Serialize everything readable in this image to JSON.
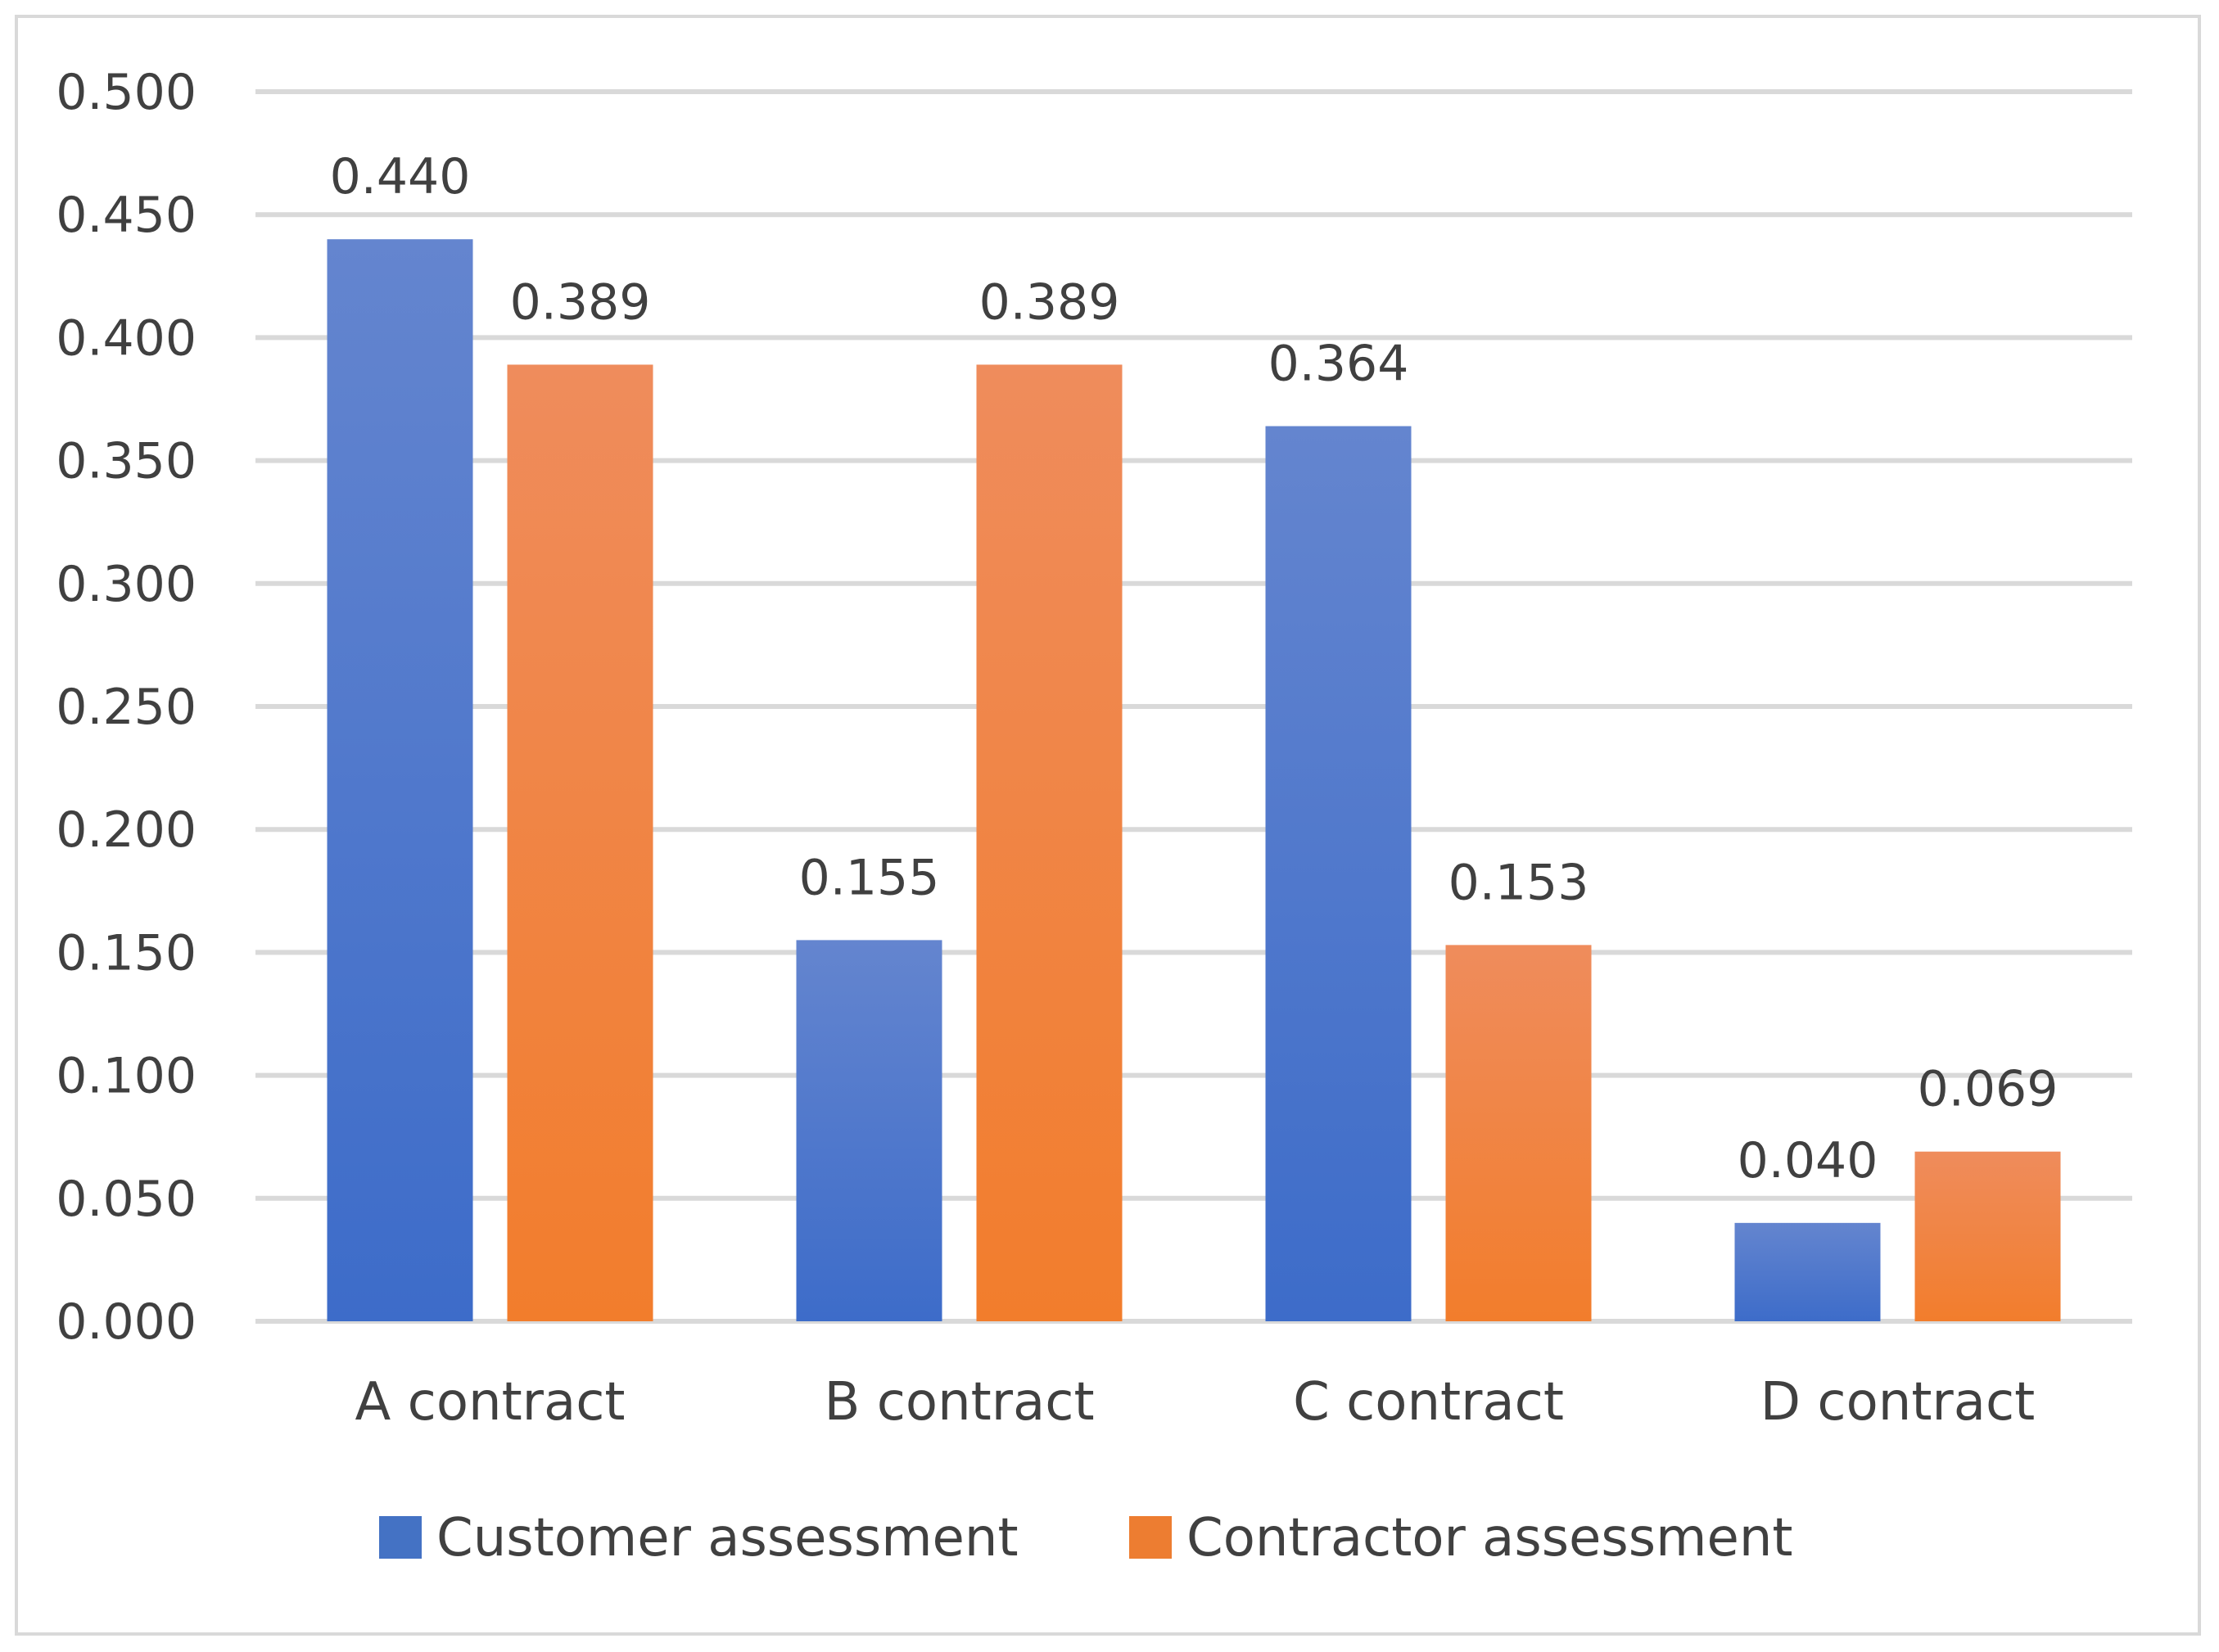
{
  "chart_data": {
    "type": "bar",
    "title": "",
    "xlabel": "",
    "ylabel": "",
    "categories": [
      "A contract",
      "B contract",
      "C contract",
      "D contract"
    ],
    "series": [
      {
        "name": "Customer assessment",
        "values": [
          0.44,
          0.155,
          0.364,
          0.04
        ],
        "color": "#4472c4"
      },
      {
        "name": "Contractor assessment",
        "values": [
          0.389,
          0.389,
          0.153,
          0.069
        ],
        "color": "#ed7d31"
      }
    ],
    "ylim": [
      0,
      0.5
    ],
    "yticks": [
      0.0,
      0.05,
      0.1,
      0.15,
      0.2,
      0.25,
      0.3,
      0.35,
      0.4,
      0.45,
      0.5
    ],
    "tick_format_decimals": 3,
    "data_label_decimals": 3,
    "grid": true,
    "legend_position": "bottom"
  }
}
